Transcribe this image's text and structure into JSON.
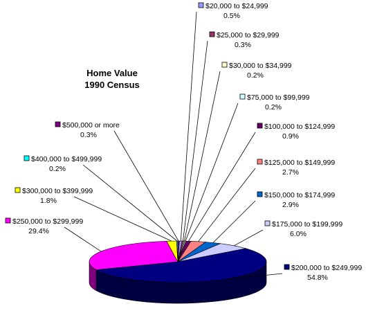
{
  "chart_data": {
    "type": "pie",
    "title_lines": [
      "Home Value",
      "1990 Census"
    ],
    "legend_position": "labels-around-pie",
    "slices": [
      {
        "label": "$20,000 to $24,999",
        "value": 0.5,
        "value_label": "0.5%",
        "color": "#9999ff"
      },
      {
        "label": "$25,000 to $29,999",
        "value": 0.3,
        "value_label": "0.3%",
        "color": "#993366"
      },
      {
        "label": "$30,000 to $34,999",
        "value": 0.2,
        "value_label": "0.2%",
        "color": "#ffffcc"
      },
      {
        "label": "$75,000 to $99,999",
        "value": 0.2,
        "value_label": "0.2%",
        "color": "#ccffff"
      },
      {
        "label": "$100,000 to $124,999",
        "value": 0.9,
        "value_label": "0.9%",
        "color": "#660066"
      },
      {
        "label": "$125,000 to $149,999",
        "value": 2.7,
        "value_label": "2.7%",
        "color": "#ff8080"
      },
      {
        "label": "$150,000 to $174,999",
        "value": 2.9,
        "value_label": "2.9%",
        "color": "#0066cc"
      },
      {
        "label": "$175,000 to $199,999",
        "value": 6.0,
        "value_label": "6.0%",
        "color": "#ccccff"
      },
      {
        "label": "$200,000 to $249,999",
        "value": 54.8,
        "value_label": "54.8%",
        "color": "#000080"
      },
      {
        "label": "$250,000 to $299,999",
        "value": 29.4,
        "value_label": "29.4%",
        "color": "#ff00ff"
      },
      {
        "label": "$300,000 to $399,999",
        "value": 1.8,
        "value_label": "1.8%",
        "color": "#ffff00"
      },
      {
        "label": "$400,000 to $499,999",
        "value": 0.2,
        "value_label": "0.2%",
        "color": "#00ffff"
      },
      {
        "label": "$500,000 or more",
        "value": 0.3,
        "value_label": "0.3%",
        "color": "#800080"
      }
    ]
  }
}
